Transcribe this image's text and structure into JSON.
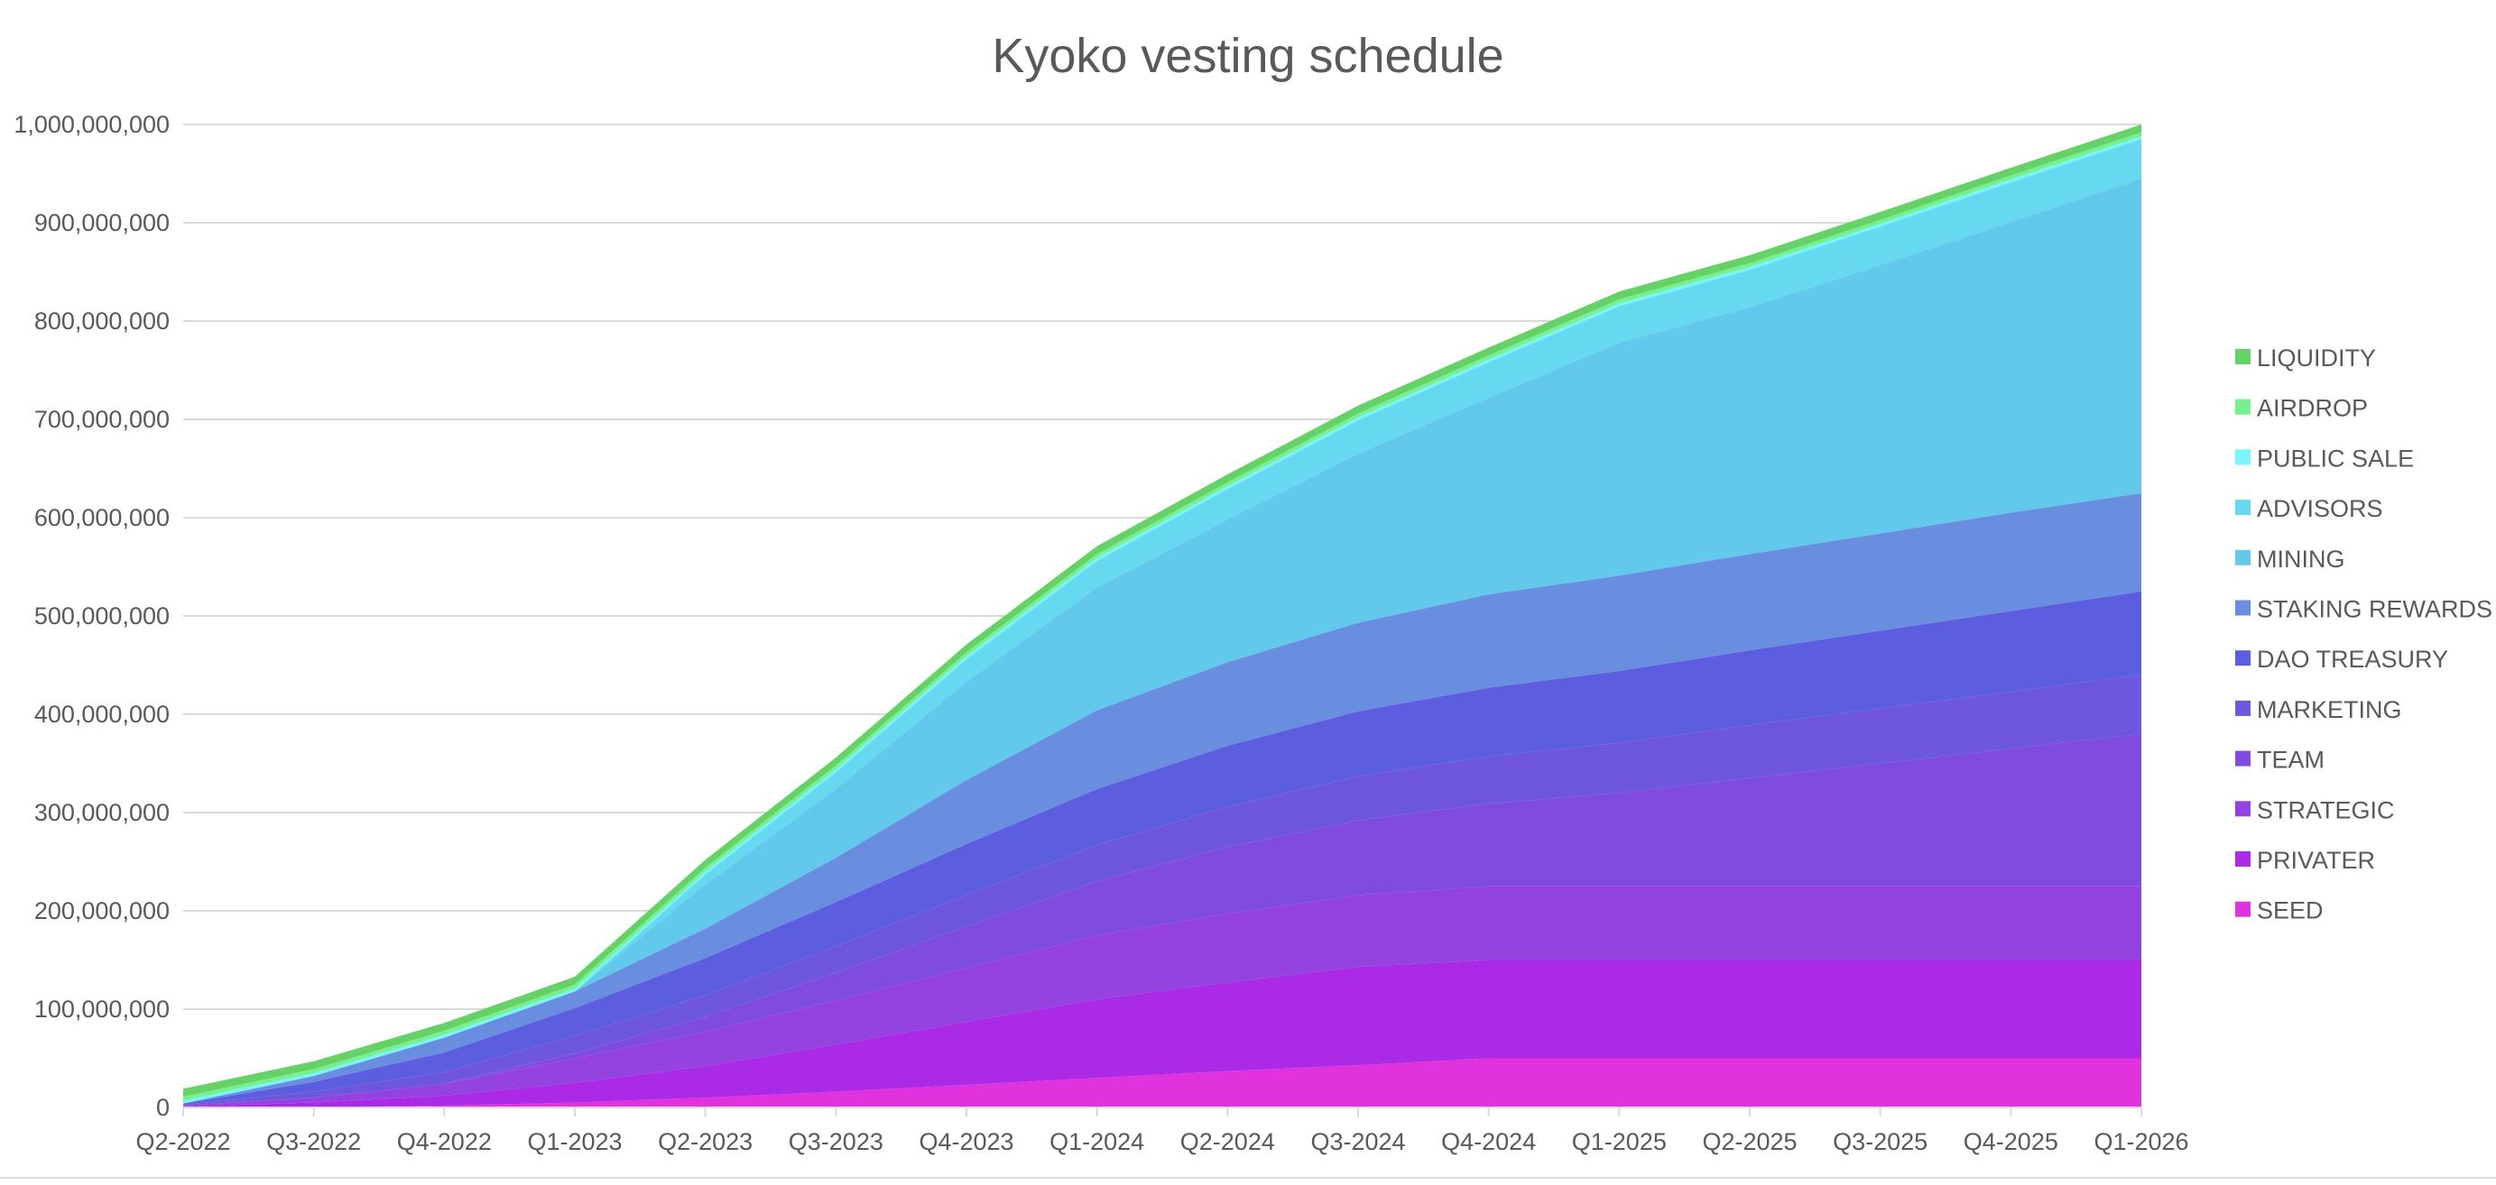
{
  "chart_data": {
    "type": "area",
    "stacked": true,
    "title": "Kyoko vesting schedule",
    "xlabel": "",
    "ylabel": "",
    "unit_note": "values in millions of tokens",
    "ylim": [
      0,
      1000000000
    ],
    "yticks": [
      0,
      100000000,
      200000000,
      300000000,
      400000000,
      500000000,
      600000000,
      700000000,
      800000000,
      900000000,
      1000000000
    ],
    "ytick_labels": [
      "0",
      "100,000,000",
      "200,000,000",
      "300,000,000",
      "400,000,000",
      "500,000,000",
      "600,000,000",
      "700,000,000",
      "800,000,000",
      "900,000,000",
      "1,000,000,000"
    ],
    "grid": true,
    "legend_position": "right",
    "categories": [
      "Q2-2022",
      "Q3-2022",
      "Q4-2022",
      "Q1-2023",
      "Q2-2023",
      "Q3-2023",
      "Q4-2023",
      "Q1-2024",
      "Q2-2024",
      "Q3-2024",
      "Q4-2024",
      "Q1-2025",
      "Q2-2025",
      "Q3-2025",
      "Q4-2025",
      "Q1-2026"
    ],
    "series": [
      {
        "name": "SEED",
        "color": "#E033DD",
        "values": [
          0,
          0,
          2,
          5,
          10,
          16,
          23,
          30,
          37,
          43,
          50,
          50,
          50,
          50,
          50,
          50
        ]
      },
      {
        "name": "PRIVATER",
        "color": "#AA2AE6",
        "values": [
          1,
          5,
          10,
          20,
          32,
          48,
          64,
          80,
          90,
          100,
          100,
          100,
          100,
          100,
          100,
          100
        ]
      },
      {
        "name": "STRATEGIC",
        "color": "#9442E0",
        "values": [
          1,
          5,
          12,
          25,
          35,
          45,
          55,
          65,
          70,
          73,
          75,
          75,
          75,
          75,
          75,
          75
        ]
      },
      {
        "name": "TEAM",
        "color": "#7F4CDF",
        "values": [
          0,
          0,
          0,
          5,
          15,
          28,
          42,
          55,
          68,
          76,
          84,
          95,
          110,
          125,
          140,
          155
        ]
      },
      {
        "name": "MARKETING",
        "color": "#6E57DD",
        "values": [
          1,
          6,
          12,
          18,
          22,
          27,
          32,
          37,
          41,
          45,
          48,
          51,
          54,
          56,
          58,
          60
        ]
      },
      {
        "name": "DAO TREASURY",
        "color": "#5D5EDF",
        "values": [
          1,
          10,
          20,
          28,
          38,
          45,
          52,
          57,
          62,
          66,
          70,
          73,
          76,
          79,
          82,
          85
        ]
      },
      {
        "name": "STAKING REWARDS",
        "color": "#6A8EDF",
        "values": [
          0,
          6,
          15,
          17,
          30,
          45,
          65,
          80,
          85,
          90,
          95,
          97,
          98,
          99,
          100,
          100
        ]
      },
      {
        "name": "MINING",
        "color": "#62C8EC",
        "values": [
          0,
          0,
          0,
          0,
          45,
          70,
          100,
          125,
          145,
          172,
          200,
          237,
          251,
          273,
          296,
          320
        ]
      },
      {
        "name": "ADVISORS",
        "color": "#66D8F0",
        "values": [
          0,
          0,
          0,
          0,
          10,
          17,
          23,
          27,
          31,
          34,
          36,
          37,
          38,
          39,
          40,
          40
        ]
      },
      {
        "name": "PUBLIC SALE",
        "color": "#77F5F8",
        "values": [
          3,
          3,
          3,
          3,
          3,
          3,
          3,
          3,
          3,
          3,
          3,
          3,
          3,
          3,
          3,
          3
        ]
      },
      {
        "name": "AIRDROP",
        "color": "#77F08F",
        "values": [
          4,
          4,
          4,
          4,
          4,
          4,
          4,
          4,
          4,
          4,
          4,
          4,
          4,
          4,
          4,
          4
        ]
      },
      {
        "name": "LIQUIDITY",
        "color": "#66D166",
        "values": [
          8,
          8,
          8,
          8,
          8,
          8,
          8,
          8,
          8,
          8,
          8,
          8,
          8,
          8,
          8,
          8
        ]
      }
    ]
  }
}
